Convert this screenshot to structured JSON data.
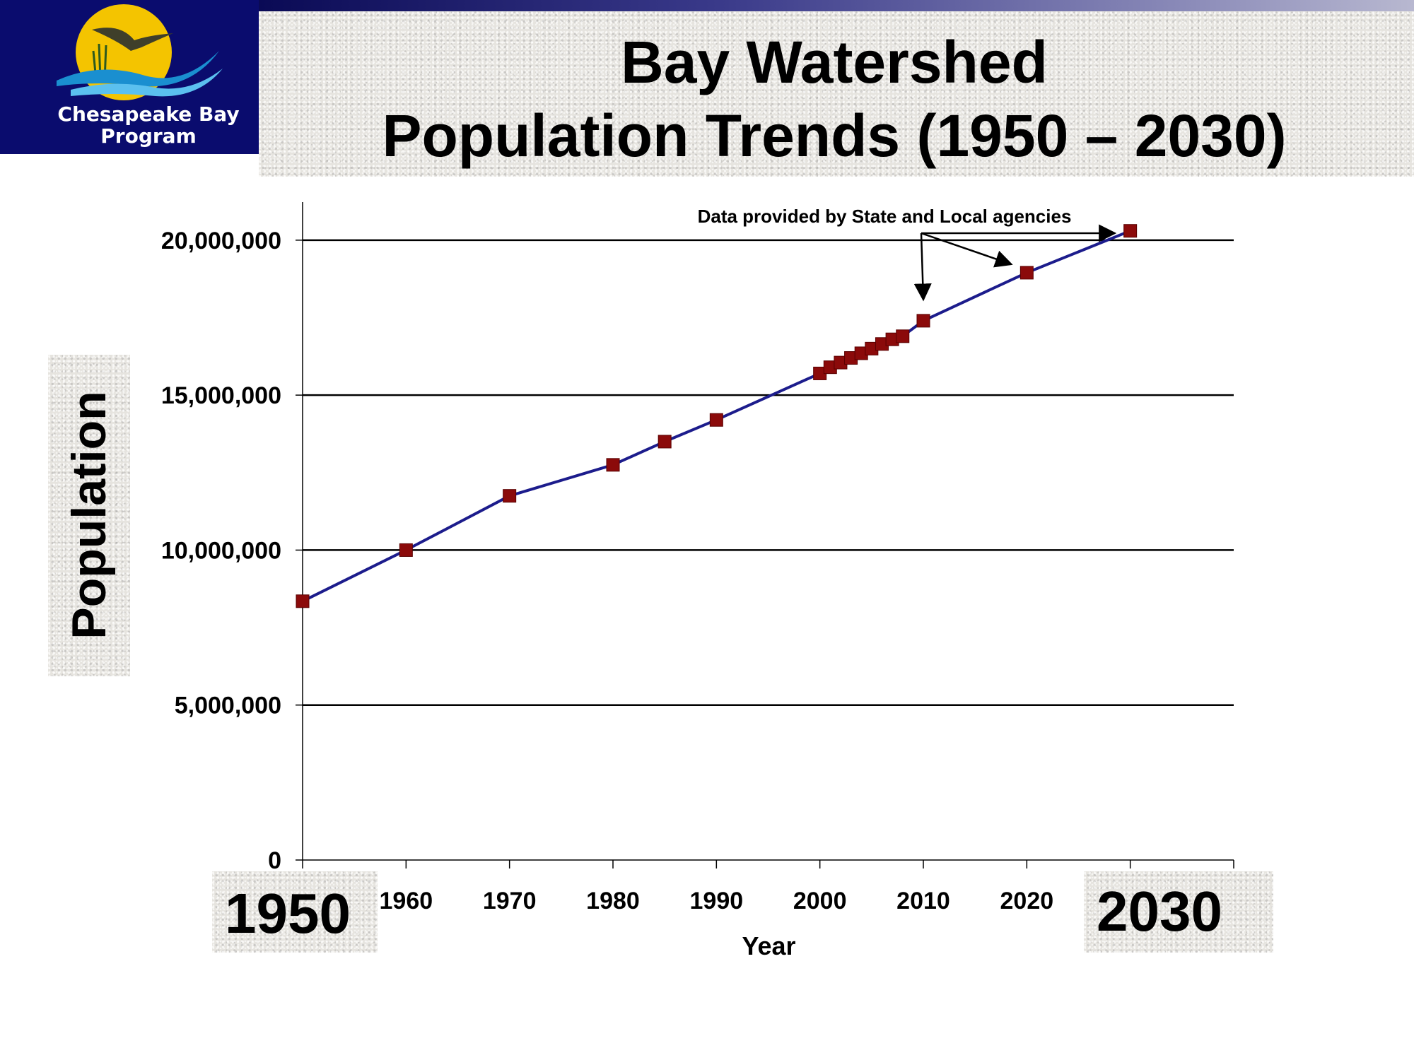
{
  "header": {
    "logo_text_line1": "Chesapeake Bay",
    "logo_text_line2": "Program",
    "title_line1": "Bay Watershed",
    "title_line2": "Population Trends (1950 – 2030)"
  },
  "colors": {
    "line": "#1c1c8c",
    "marker": "#8b0a0a",
    "logo_background": "#0a0c6e",
    "gridline": "#000000"
  },
  "chart_data": {
    "type": "line",
    "title": "Bay Watershed Population Trends (1950 – 2030)",
    "xlabel": "Year",
    "ylabel": "Population",
    "x_ticks": [
      "1960",
      "1970",
      "1980",
      "1990",
      "2000",
      "2010",
      "2020"
    ],
    "x_end_labels": [
      "1950",
      "2030"
    ],
    "y_ticks": [
      "0",
      "5,000,000",
      "10,000,000",
      "15,000,000",
      "20,000,000"
    ],
    "xlim": [
      1950,
      2040
    ],
    "ylim": [
      0,
      21000000
    ],
    "grid": "horizontal",
    "annotation": "Data provided by State and Local agencies",
    "annotation_targets": [
      2010,
      2020,
      2030
    ],
    "series": [
      {
        "x": [
          1950,
          1960,
          1970,
          1980,
          1985,
          1990,
          2000,
          2001,
          2002,
          2003,
          2004,
          2005,
          2006,
          2007,
          2008,
          2010,
          2020,
          2030
        ],
        "values": [
          8350000,
          10000000,
          11750000,
          12750000,
          13500000,
          14200000,
          15700000,
          15900000,
          16050000,
          16200000,
          16350000,
          16500000,
          16650000,
          16800000,
          16900000,
          17400000,
          18950000,
          20300000
        ]
      }
    ]
  }
}
